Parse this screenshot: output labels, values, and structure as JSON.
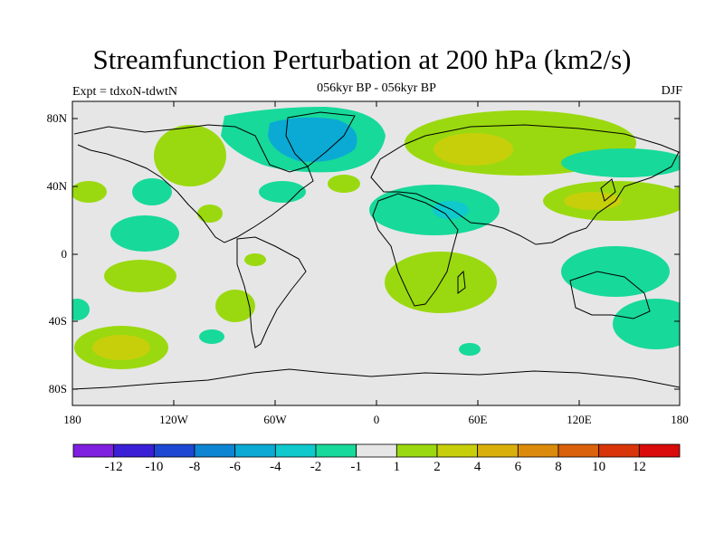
{
  "title": "Streamfunction Perturbation at 200 hPa (km2/s)",
  "subtitle": "056kyr BP - 056kyr BP",
  "experiment_label": "Expt = tdxoN-tdwtN",
  "season_label": "DJF",
  "map": {
    "projection": "cylindrical equidistant",
    "lon_range": [
      -180,
      180
    ],
    "lat_range": [
      -90,
      90
    ],
    "background_color": "#e6e6e6",
    "coastlines": true
  },
  "axes": {
    "y_ticks": [
      "80N",
      "40N",
      "0",
      "40S",
      "80S"
    ],
    "x_ticks": [
      "180",
      "120W",
      "60W",
      "0",
      "60E",
      "120E",
      "180"
    ]
  },
  "colorbar": {
    "colors": [
      "#7f1fdf",
      "#3b1fd6",
      "#1c48d3",
      "#0d85d2",
      "#0aaad4",
      "#0fc9cd",
      "#17d99a",
      "#e6e6e6",
      "#9ad90f",
      "#c7cf0b",
      "#d9b00b",
      "#dc8a0b",
      "#d9620b",
      "#d9350b",
      "#d90b0b"
    ],
    "labels": [
      "-12",
      "-10",
      "-8",
      "-6",
      "-4",
      "-2",
      "-1",
      "1",
      "2",
      "4",
      "6",
      "8",
      "10",
      "12"
    ]
  },
  "field_regions": [
    {
      "name": "north-atlantic-greenland-low",
      "color": "#17d99a"
    },
    {
      "name": "greenland-core-low",
      "color": "#0aaad4"
    },
    {
      "name": "siberian-high",
      "color": "#9ad90f"
    },
    {
      "name": "siberian-high-core",
      "color": "#d9b00b"
    },
    {
      "name": "east-asia-high",
      "color": "#9ad90f"
    },
    {
      "name": "south-pacific-high",
      "color": "#9ad90f"
    },
    {
      "name": "southern-africa-high",
      "color": "#9ad90f"
    },
    {
      "name": "australia-low",
      "color": "#17d99a"
    }
  ]
}
